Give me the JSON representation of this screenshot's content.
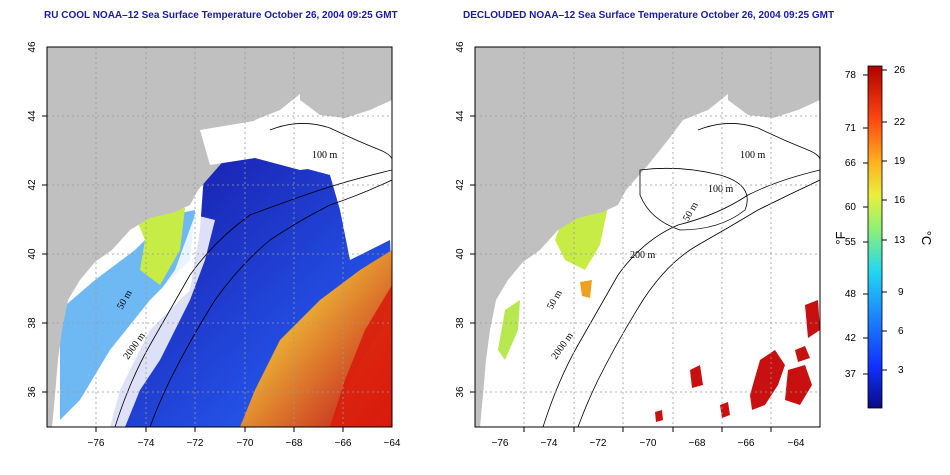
{
  "left_panel": {
    "title": "RU COOL NOAA–12 Sea Surface Temperature October 26, 2004 09:25 GMT",
    "contour_labels": [
      "100 m",
      "50 m",
      "2000 m"
    ]
  },
  "right_panel": {
    "title": "DECLOUDED NOAA–12 Sea Surface Temperature October 26, 2004 09:25 GMT",
    "contour_labels": [
      "100 m",
      "100 m",
      "50 m",
      "200 m",
      "50 m",
      "2000 m"
    ]
  },
  "axes": {
    "x_ticks": [
      "−76",
      "−74",
      "−72",
      "−70",
      "−68",
      "−66",
      "−64"
    ],
    "y_ticks": [
      "46",
      "44",
      "42",
      "40",
      "38",
      "36"
    ],
    "xlim": [
      -77,
      -63
    ],
    "ylim": [
      35,
      46
    ],
    "grid": "dotted"
  },
  "colorbar": {
    "fahrenheit_ticks": [
      "78",
      "71",
      "66",
      "60",
      "55",
      "48",
      "42",
      "37"
    ],
    "celsius_ticks": [
      "26",
      "22",
      "19",
      "16",
      "13",
      "9",
      "6",
      "3"
    ],
    "unit_f": "°F",
    "unit_c": "°C",
    "colors": [
      "#0b0b85",
      "#1030ff",
      "#1c8cff",
      "#22d8f0",
      "#8cf078",
      "#e8f03c",
      "#ffb020",
      "#ff4a10",
      "#b00000"
    ]
  },
  "colors": {
    "land": "#c0c0c0",
    "cloud": "#ffffff",
    "title_text": "#1a1aa6"
  }
}
